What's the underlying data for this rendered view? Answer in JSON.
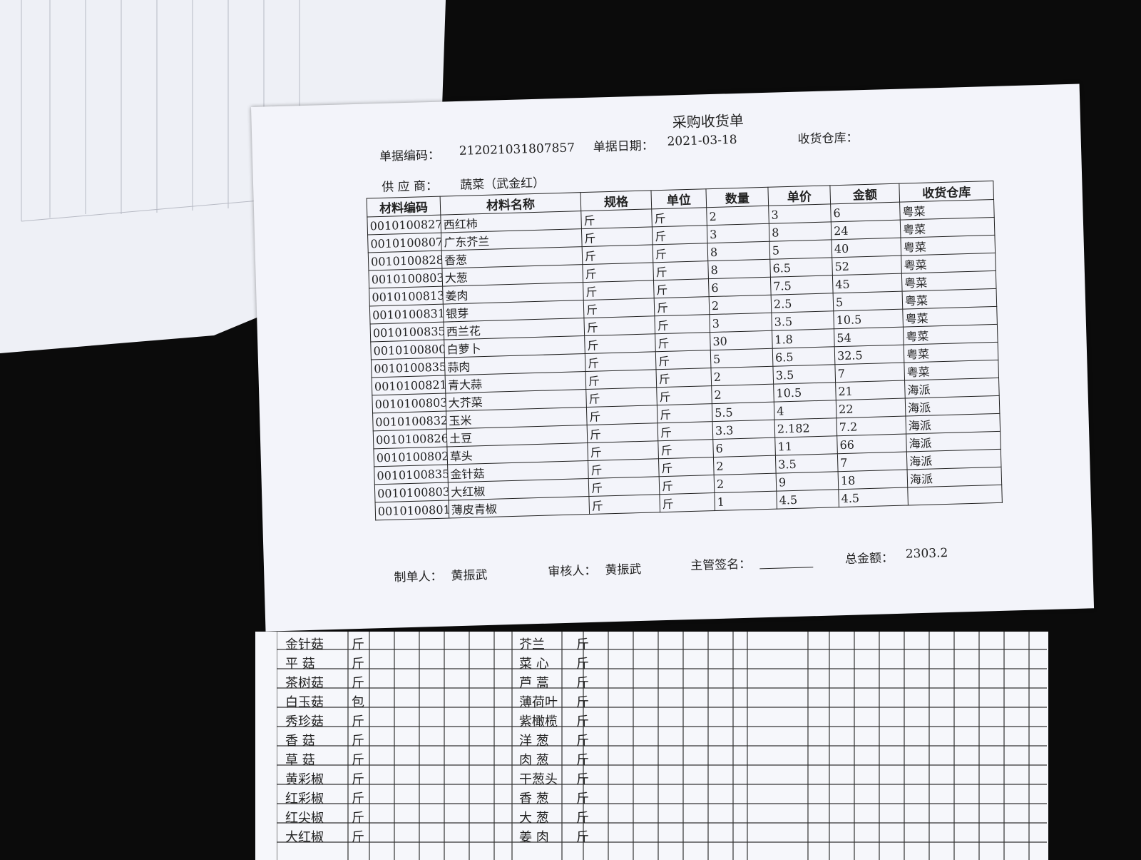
{
  "receipt": {
    "title": "采购收货单",
    "doc_no_label": "单据编码：",
    "doc_no": "212021031807857",
    "date_label": "单据日期：",
    "date": "2021-03-18",
    "warehouse_label": "收货仓库：",
    "supplier_label": "供 应 商：",
    "supplier": "蔬菜（武金红）",
    "table": {
      "headers": [
        "材料编码",
        "材料名称",
        "规格",
        "单位",
        "数量",
        "单价",
        "金额",
        "收货仓库"
      ],
      "rows": [
        [
          "0010100827",
          "西红柿",
          "斤",
          "斤",
          2,
          3,
          6,
          "粤菜"
        ],
        [
          "0010100807",
          "广东芥兰",
          "斤",
          "斤",
          3,
          8,
          24,
          "粤菜"
        ],
        [
          "0010100828",
          "香葱",
          "斤",
          "斤",
          8,
          5,
          40,
          "粤菜"
        ],
        [
          "0010100803",
          "大葱",
          "斤",
          "斤",
          8,
          6.5,
          52,
          "粤菜"
        ],
        [
          "0010100813",
          "姜肉",
          "斤",
          "斤",
          6,
          7.5,
          45,
          "粤菜"
        ],
        [
          "0010100831",
          "银芽",
          "斤",
          "斤",
          2,
          2.5,
          5,
          "粤菜"
        ],
        [
          "0010100835",
          "西兰花",
          "斤",
          "斤",
          3,
          3.5,
          10.5,
          "粤菜"
        ],
        [
          "0010100800",
          "白萝卜",
          "斤",
          "斤",
          30,
          1.8,
          54,
          "粤菜"
        ],
        [
          "0010100835",
          "蒜肉",
          "斤",
          "斤",
          5,
          6.5,
          32.5,
          "粤菜"
        ],
        [
          "0010100821",
          "青大蒜",
          "斤",
          "斤",
          2,
          3.5,
          7,
          "粤菜"
        ],
        [
          "0010100803",
          "大芥菜",
          "斤",
          "斤",
          2,
          10.5,
          21,
          "海派"
        ],
        [
          "0010100832",
          "玉米",
          "斤",
          "斤",
          5.5,
          4,
          22,
          "海派"
        ],
        [
          "0010100826",
          "土豆",
          "斤",
          "斤",
          3.3,
          2.182,
          7.2,
          "海派"
        ],
        [
          "0010100802",
          "草头",
          "斤",
          "斤",
          6,
          11,
          66,
          "海派"
        ],
        [
          "0010100835",
          "金针菇",
          "斤",
          "斤",
          2,
          3.5,
          7,
          "海派"
        ],
        [
          "0010100803",
          "大红椒",
          "斤",
          "斤",
          2,
          9,
          18,
          "海派"
        ],
        [
          "0010100801",
          "薄皮青椒",
          "斤",
          "斤",
          1,
          4.5,
          4.5,
          null
        ]
      ]
    },
    "maker_label": "制单人：",
    "maker": "黄振武",
    "reviewer_label": "审核人：",
    "reviewer": "黄振武",
    "supervisor_label": "主管签名：",
    "total_label": "总金额：",
    "total": "2303.2"
  },
  "order_sheet": {
    "left_items": [
      [
        "金针菇",
        "斤"
      ],
      [
        "平 菇",
        "斤"
      ],
      [
        "茶树菇",
        "斤"
      ],
      [
        "白玉菇",
        "包"
      ],
      [
        "秀珍菇",
        "斤"
      ],
      [
        "香 菇",
        "斤"
      ],
      [
        "草 菇",
        "斤"
      ],
      [
        "黄彩椒",
        "斤"
      ],
      [
        "红彩椒",
        "斤"
      ],
      [
        "红尖椒",
        "斤"
      ],
      [
        "大红椒",
        "斤"
      ]
    ],
    "middle_items": [
      [
        "芥兰",
        "斤"
      ],
      [
        "菜 心",
        "斤"
      ],
      [
        "芦 蒿",
        "斤"
      ],
      [
        "薄荷叶",
        "斤"
      ],
      [
        "紫橄榄",
        "斤"
      ],
      [
        "洋 葱",
        "斤"
      ],
      [
        "肉 葱",
        "斤"
      ],
      [
        "干葱头",
        "斤"
      ],
      [
        "香 葱",
        "斤"
      ],
      [
        "大 葱",
        "斤"
      ],
      [
        "姜 肉",
        "斤"
      ]
    ]
  }
}
